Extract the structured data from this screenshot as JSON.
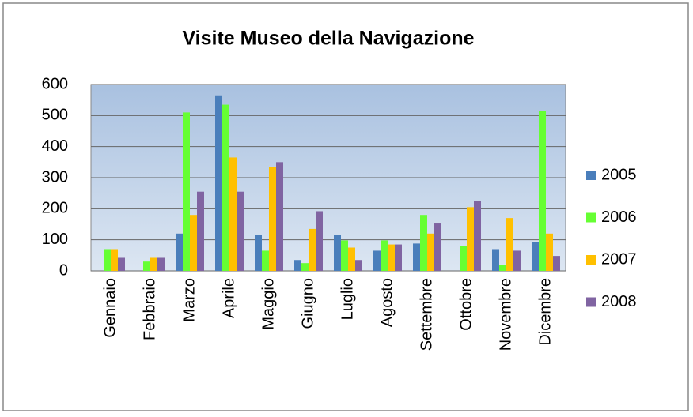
{
  "chart_data": {
    "type": "bar",
    "title": "Visite Museo della Navigazione",
    "categories": [
      "Gennaio",
      "Febbraio",
      "Marzo",
      "Aprile",
      "Maggio",
      "Giugno",
      "Luglio",
      "Agosto",
      "Settembre",
      "Ottobre",
      "Novembre",
      "Dicembre"
    ],
    "series": [
      {
        "name": "2005",
        "color": "#4a7ebb",
        "values": [
          0,
          0,
          120,
          565,
          115,
          35,
          115,
          65,
          88,
          0,
          70,
          92
        ]
      },
      {
        "name": "2006",
        "color": "#66ff33",
        "values": [
          70,
          30,
          510,
          535,
          65,
          25,
          98,
          98,
          180,
          80,
          20,
          515
        ]
      },
      {
        "name": "2007",
        "color": "#ffc000",
        "values": [
          70,
          42,
          180,
          365,
          335,
          135,
          75,
          85,
          120,
          205,
          170,
          120
        ]
      },
      {
        "name": "2008",
        "color": "#8064a2",
        "values": [
          42,
          42,
          255,
          255,
          350,
          192,
          35,
          85,
          155,
          225,
          65,
          48
        ]
      }
    ],
    "ylim": [
      0,
      600
    ],
    "yticks": [
      0,
      100,
      200,
      300,
      400,
      500,
      600
    ],
    "grid": true,
    "legend": "right"
  }
}
